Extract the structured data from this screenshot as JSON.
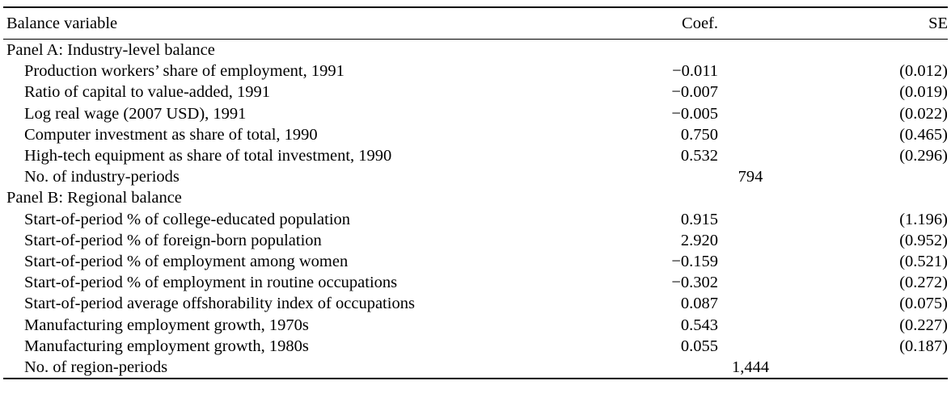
{
  "header": {
    "variable": "Balance variable",
    "coef": "Coef.",
    "se": "SE"
  },
  "panel_a": {
    "title": "Panel A: Industry-level balance",
    "rows": [
      {
        "label": "Production workers’ share of employment, 1991",
        "coef": "−0.011",
        "se": "(0.012)"
      },
      {
        "label": "Ratio of capital to value-added, 1991",
        "coef": "−0.007",
        "se": "(0.019)"
      },
      {
        "label": "Log real wage (2007 USD), 1991",
        "coef": "−0.005",
        "se": "(0.022)"
      },
      {
        "label": "Computer investment as share of total, 1990",
        "coef": "0.750",
        "se": "(0.465)"
      },
      {
        "label": "High-tech equipment as share of total investment, 1990",
        "coef": "0.532",
        "se": "(0.296)"
      }
    ],
    "count_label": "No. of industry-periods",
    "count_value": "794"
  },
  "panel_b": {
    "title": "Panel B: Regional balance",
    "rows": [
      {
        "label": "Start-of-period % of college-educated population",
        "coef": "0.915",
        "se": "(1.196)"
      },
      {
        "label": "Start-of-period % of foreign-born population",
        "coef": "2.920",
        "se": "(0.952)"
      },
      {
        "label": "Start-of-period % of employment among women",
        "coef": "−0.159",
        "se": "(0.521)"
      },
      {
        "label": "Start-of-period % of employment in routine occupations",
        "coef": "−0.302",
        "se": "(0.272)"
      },
      {
        "label": "Start-of-period average offshorability index of occupations",
        "coef": "0.087",
        "se": "(0.075)"
      },
      {
        "label": "Manufacturing employment growth, 1970s",
        "coef": "0.543",
        "se": "(0.227)"
      },
      {
        "label": "Manufacturing employment growth, 1980s",
        "coef": "0.055",
        "se": "(0.187)"
      }
    ],
    "count_label": "No. of region-periods",
    "count_value": "1,444"
  }
}
